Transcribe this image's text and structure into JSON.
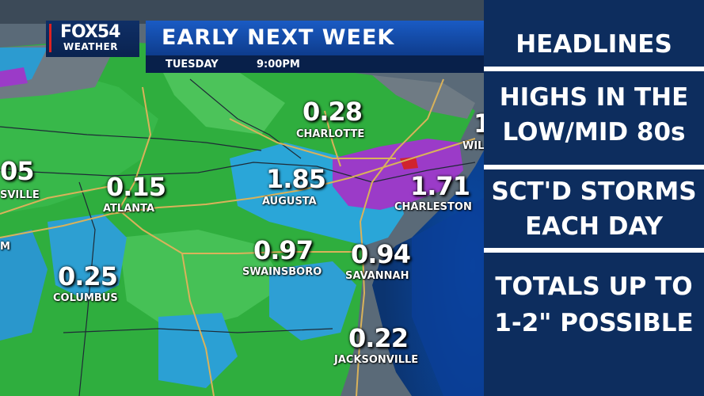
{
  "header": {
    "logo_brand": "FOX54",
    "logo_sub": "WEATHER",
    "title": "EARLY NEXT WEEK",
    "day": "TUESDAY",
    "time": "9:00PM"
  },
  "map": {
    "cities": [
      {
        "name": "CHARLOTTE",
        "value": "0.28"
      },
      {
        "name": "AUGUSTA",
        "value": "1.85"
      },
      {
        "name": "CHARLESTON",
        "value": "1.71"
      },
      {
        "name": "ATLANTA",
        "value": "0.15"
      },
      {
        "name": "SWAINSBORO",
        "value": "0.97"
      },
      {
        "name": "SAVANNAH",
        "value": "0.94"
      },
      {
        "name": "COLUMBUS",
        "value": "0.25"
      },
      {
        "name": "JACKSONVILLE",
        "value": "0.22"
      }
    ],
    "partial_labels": {
      "left_value": "05",
      "left_name": "SVILLE",
      "left_m": "M",
      "right_name": "WIL",
      "right_value": "1"
    }
  },
  "headlines": {
    "title": "HEADLINES",
    "item1_line1": "HIGHS IN THE",
    "item1_line2": "LOW/MID 80s",
    "item2_line1": "SCT'D STORMS",
    "item2_line2": "EACH DAY",
    "item3_line1": "TOTALS UP TO",
    "item3_line2": "1-2\" POSSIBLE"
  }
}
